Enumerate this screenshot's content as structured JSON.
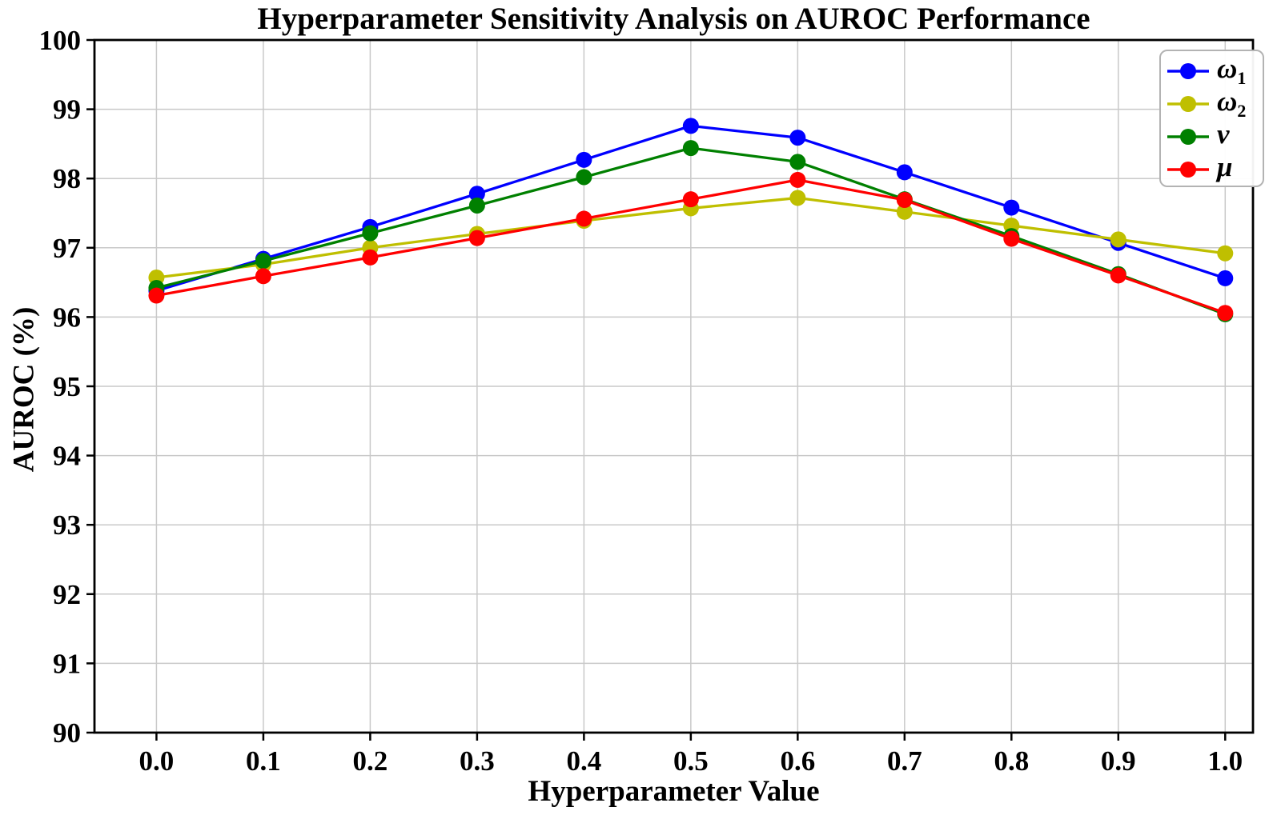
{
  "figure": {
    "background": "#ffffff"
  },
  "chart_data": {
    "type": "line",
    "title": "Hyperparameter Sensitivity Analysis on AUROC Performance",
    "xlabel": "Hyperparameter Value",
    "ylabel": "AUROC (%)",
    "x": [
      0.0,
      0.1,
      0.2,
      0.3,
      0.4,
      0.5,
      0.6,
      0.7,
      0.8,
      0.9,
      1.0
    ],
    "xtick_labels": [
      "0.0",
      "0.1",
      "0.2",
      "0.3",
      "0.4",
      "0.5",
      "0.6",
      "0.7",
      "0.8",
      "0.9",
      "1.0"
    ],
    "ytick_labels": [
      "90",
      "91",
      "92",
      "93",
      "94",
      "95",
      "96",
      "97",
      "98",
      "99",
      "100"
    ],
    "xlim": [
      -0.058,
      1.026
    ],
    "ylim": [
      90,
      100
    ],
    "grid": true,
    "grid_color": "#c9c9c9",
    "axis_color": "#000000",
    "legend_position": "top-right",
    "marker": "circle",
    "series": [
      {
        "name": "omega_1",
        "symbol": "ω",
        "sub": "1",
        "color": "#0000ff",
        "values": [
          96.38,
          96.84,
          97.3,
          97.78,
          98.27,
          98.76,
          98.59,
          98.09,
          97.58,
          97.07,
          96.56
        ]
      },
      {
        "name": "omega_2",
        "symbol": "ω",
        "sub": "2",
        "color": "#bfbf00",
        "values": [
          96.57,
          96.76,
          97.0,
          97.2,
          97.39,
          97.57,
          97.72,
          97.52,
          97.32,
          97.12,
          96.92
        ]
      },
      {
        "name": "nu",
        "symbol": "ν",
        "sub": "",
        "color": "#008000",
        "values": [
          96.42,
          96.81,
          97.21,
          97.61,
          98.02,
          98.44,
          98.24,
          97.7,
          97.17,
          96.62,
          96.04
        ]
      },
      {
        "name": "mu",
        "symbol": "μ",
        "sub": "",
        "color": "#ff0000",
        "values": [
          96.31,
          96.59,
          96.86,
          97.14,
          97.42,
          97.7,
          97.98,
          97.69,
          97.13,
          96.6,
          96.06
        ]
      }
    ]
  }
}
